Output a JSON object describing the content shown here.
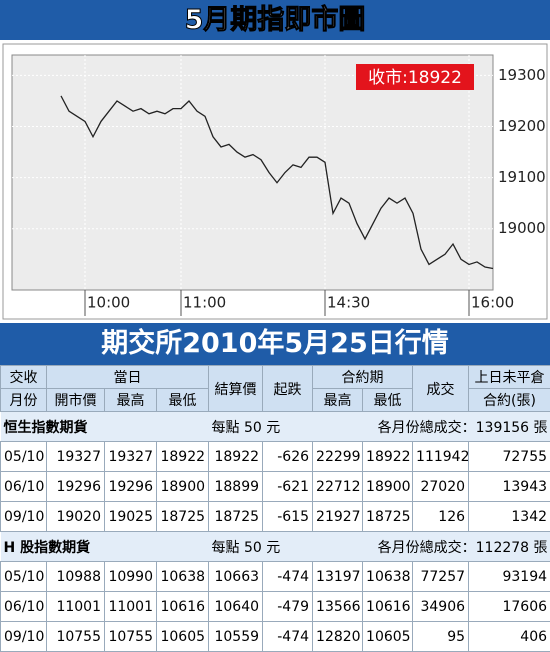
{
  "chart_data": {
    "type": "line",
    "title": "5月期指即市圖",
    "annotation": "收市:18922",
    "categories": [
      null,
      null,
      null,
      "10:00",
      null,
      null,
      null,
      null,
      null,
      null,
      null,
      null,
      null,
      null,
      null,
      "11:00",
      null,
      null,
      null,
      null,
      null,
      null,
      null,
      null,
      null,
      null,
      null,
      null,
      null,
      null,
      null,
      null,
      null,
      "14:30",
      null,
      null,
      null,
      null,
      null,
      null,
      null,
      null,
      null,
      null,
      null,
      null,
      null,
      null,
      null,
      null,
      null,
      "16:00",
      null,
      null,
      null
    ],
    "series": [
      {
        "color": "#222222",
        "values": [
          19260,
          19230,
          19220,
          19210,
          19180,
          19210,
          19230,
          19250,
          19240,
          19230,
          19235,
          19225,
          19230,
          19225,
          19235,
          19235,
          19250,
          19230,
          19220,
          19180,
          19160,
          19165,
          19150,
          19140,
          19145,
          19135,
          19110,
          19090,
          19110,
          19125,
          19120,
          19140,
          19140,
          19130,
          19030,
          19060,
          19050,
          19010,
          18980,
          19010,
          19040,
          19060,
          19050,
          19060,
          19030,
          18960,
          18930,
          18940,
          18950,
          18970,
          18940,
          18930,
          18935,
          18925,
          18922
        ]
      }
    ],
    "ylim": [
      18880,
      19340
    ],
    "yticks": [
      19000,
      19100,
      19200,
      19300
    ],
    "grid": true
  },
  "table": {
    "title": "期交所2010年5月25日行情",
    "header_top": [
      "交收",
      "當日",
      "結算價",
      "起跌",
      "合約期",
      "成交",
      "上日未平倉"
    ],
    "header_bottom": [
      "月份",
      "開市價",
      "最高",
      "最低",
      "最高",
      "最低",
      "合約(張)"
    ],
    "sections": [
      {
        "name": "恒生指數期貨",
        "point_value": "每點 50 元",
        "total": "各月份總成交：139156 張",
        "rows": [
          [
            "05/10",
            19327,
            19327,
            18922,
            18922,
            -626,
            22299,
            18922,
            111942,
            72755
          ],
          [
            "06/10",
            19296,
            19296,
            18900,
            18899,
            -621,
            22712,
            18900,
            27020,
            13943
          ],
          [
            "09/10",
            19020,
            19025,
            18725,
            18725,
            -615,
            21927,
            18725,
            126,
            1342
          ]
        ]
      },
      {
        "name": "H 股指數期貨",
        "point_value": "每點 50 元",
        "total": "各月份總成交：112278 張",
        "rows": [
          [
            "05/10",
            10988,
            10990,
            10638,
            10663,
            -474,
            13197,
            10638,
            77257,
            93194
          ],
          [
            "06/10",
            11001,
            11001,
            10616,
            10640,
            -479,
            13566,
            10616,
            34906,
            17606
          ],
          [
            "09/10",
            10755,
            10755,
            10605,
            10559,
            -474,
            12820,
            10605,
            95,
            406
          ]
        ]
      }
    ]
  }
}
